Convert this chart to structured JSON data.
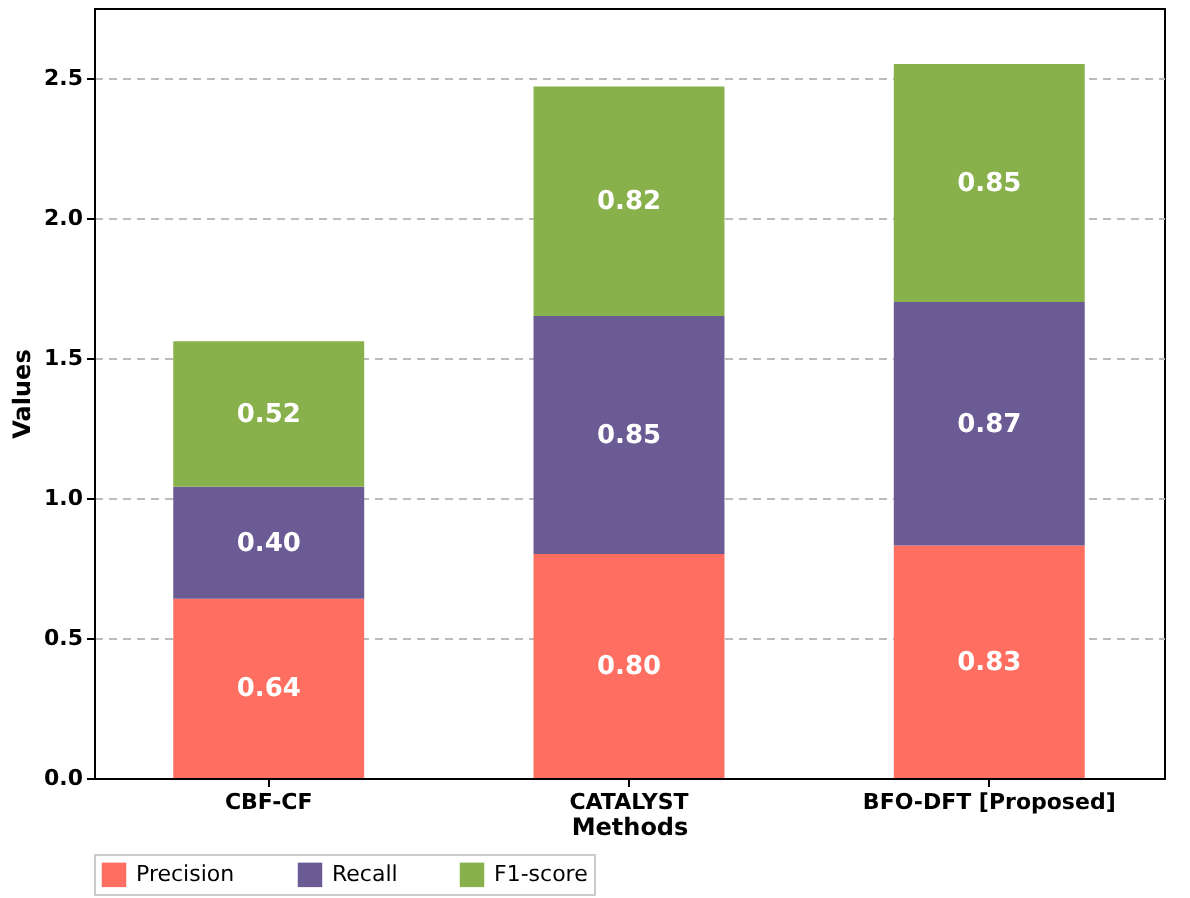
{
  "chart_data": {
    "type": "bar",
    "stacked": true,
    "xlabel": "Methods",
    "ylabel": "Values",
    "categories": [
      "CBF-CF",
      "CATALYST",
      "BFO-DFT [Proposed]"
    ],
    "series": [
      {
        "name": "Precision",
        "color": "#ff6f61",
        "values": [
          0.64,
          0.8,
          0.83
        ],
        "value_labels": [
          "0.64",
          "0.80",
          "0.83"
        ]
      },
      {
        "name": "Recall",
        "color": "#6b5b95",
        "values": [
          0.4,
          0.85,
          0.87
        ],
        "value_labels": [
          "0.40",
          "0.85",
          "0.87"
        ]
      },
      {
        "name": "F1-score",
        "color": "#88b04b",
        "values": [
          0.52,
          0.82,
          0.85
        ],
        "value_labels": [
          "0.52",
          "0.82",
          "0.85"
        ]
      }
    ],
    "ylim": [
      0,
      2.75
    ],
    "yticks": [
      {
        "value": 0,
        "label": "0.0"
      },
      {
        "value": 0.5,
        "label": "0.5"
      },
      {
        "value": 1,
        "label": "1.0"
      },
      {
        "value": 1.5,
        "label": "1.5"
      },
      {
        "value": 2,
        "label": "2.0"
      },
      {
        "value": 2.5,
        "label": "2.5"
      }
    ],
    "grid": "y",
    "legend": "bottom"
  }
}
